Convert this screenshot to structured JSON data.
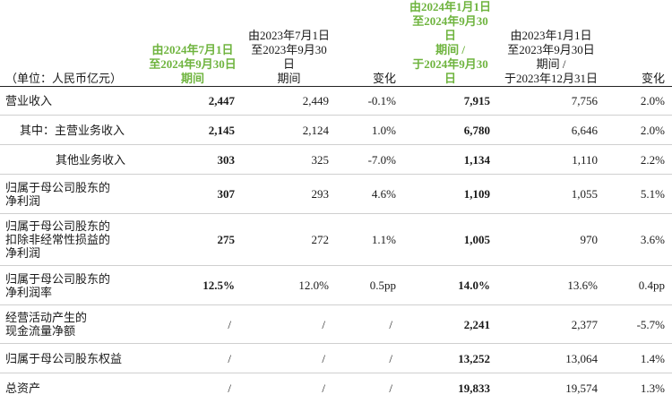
{
  "header": {
    "unit": "（单位：人民币亿元）",
    "q3_2024": [
      "由2024年7月1日",
      "至2024年9月30日",
      "期间"
    ],
    "q3_2023": [
      "由2023年7月1日",
      "至2023年9月30日",
      "期间"
    ],
    "change1": "变化",
    "ytd_2024": [
      "由2024年1月1日",
      "至2024年9月30日",
      "期间 /",
      "于2024年9月30日"
    ],
    "ytd_2023": [
      "由2023年1月1日",
      "至2023年9月30日",
      "期间 /",
      "于2023年12月31日"
    ],
    "change2": "变化"
  },
  "rows": [
    {
      "label": [
        "营业收入"
      ],
      "q3_2024": "2,447",
      "q3_2023": "2,449",
      "chg1": "-0.1%",
      "ytd_2024": "7,915",
      "ytd_2023": "7,756",
      "chg2": "2.0%"
    },
    {
      "label": [
        "其中：主营业务收入"
      ],
      "q3_2024": "2,145",
      "q3_2023": "2,124",
      "chg1": "1.0%",
      "ytd_2024": "6,780",
      "ytd_2023": "6,646",
      "chg2": "2.0%"
    },
    {
      "label": [
        "其他业务收入"
      ],
      "q3_2024": "303",
      "q3_2023": "325",
      "chg1": "-7.0%",
      "ytd_2024": "1,134",
      "ytd_2023": "1,110",
      "chg2": "2.2%"
    },
    {
      "label": [
        "归属于母公司股东的",
        "净利润"
      ],
      "q3_2024": "307",
      "q3_2023": "293",
      "chg1": "4.6%",
      "ytd_2024": "1,109",
      "ytd_2023": "1,055",
      "chg2": "5.1%"
    },
    {
      "label": [
        "归属于母公司股东的",
        "扣除非经常性损益的",
        "净利润"
      ],
      "q3_2024": "275",
      "q3_2023": "272",
      "chg1": "1.1%",
      "ytd_2024": "1,005",
      "ytd_2023": "970",
      "chg2": "3.6%"
    },
    {
      "label": [
        "归属于母公司股东的",
        "净利润率"
      ],
      "q3_2024": "12.5%",
      "q3_2023": "12.0%",
      "chg1": "0.5pp",
      "ytd_2024": "14.0%",
      "ytd_2023": "13.6%",
      "chg2": "0.4pp"
    },
    {
      "label": [
        "经营活动产生的",
        "现金流量净额"
      ],
      "q3_2024": "/",
      "q3_2023": "/",
      "chg1": "/",
      "ytd_2024": "2,241",
      "ytd_2023": "2,377",
      "chg2": "-5.7%"
    },
    {
      "label": [
        "归属于母公司股东权益"
      ],
      "q3_2024": "/",
      "q3_2023": "/",
      "chg1": "/",
      "ytd_2024": "13,252",
      "ytd_2023": "13,064",
      "chg2": "1.4%"
    },
    {
      "label": [
        "总资产"
      ],
      "q3_2024": "/",
      "q3_2023": "/",
      "chg1": "/",
      "ytd_2024": "19,833",
      "ytd_2023": "19,574",
      "chg2": "1.3%"
    }
  ]
}
